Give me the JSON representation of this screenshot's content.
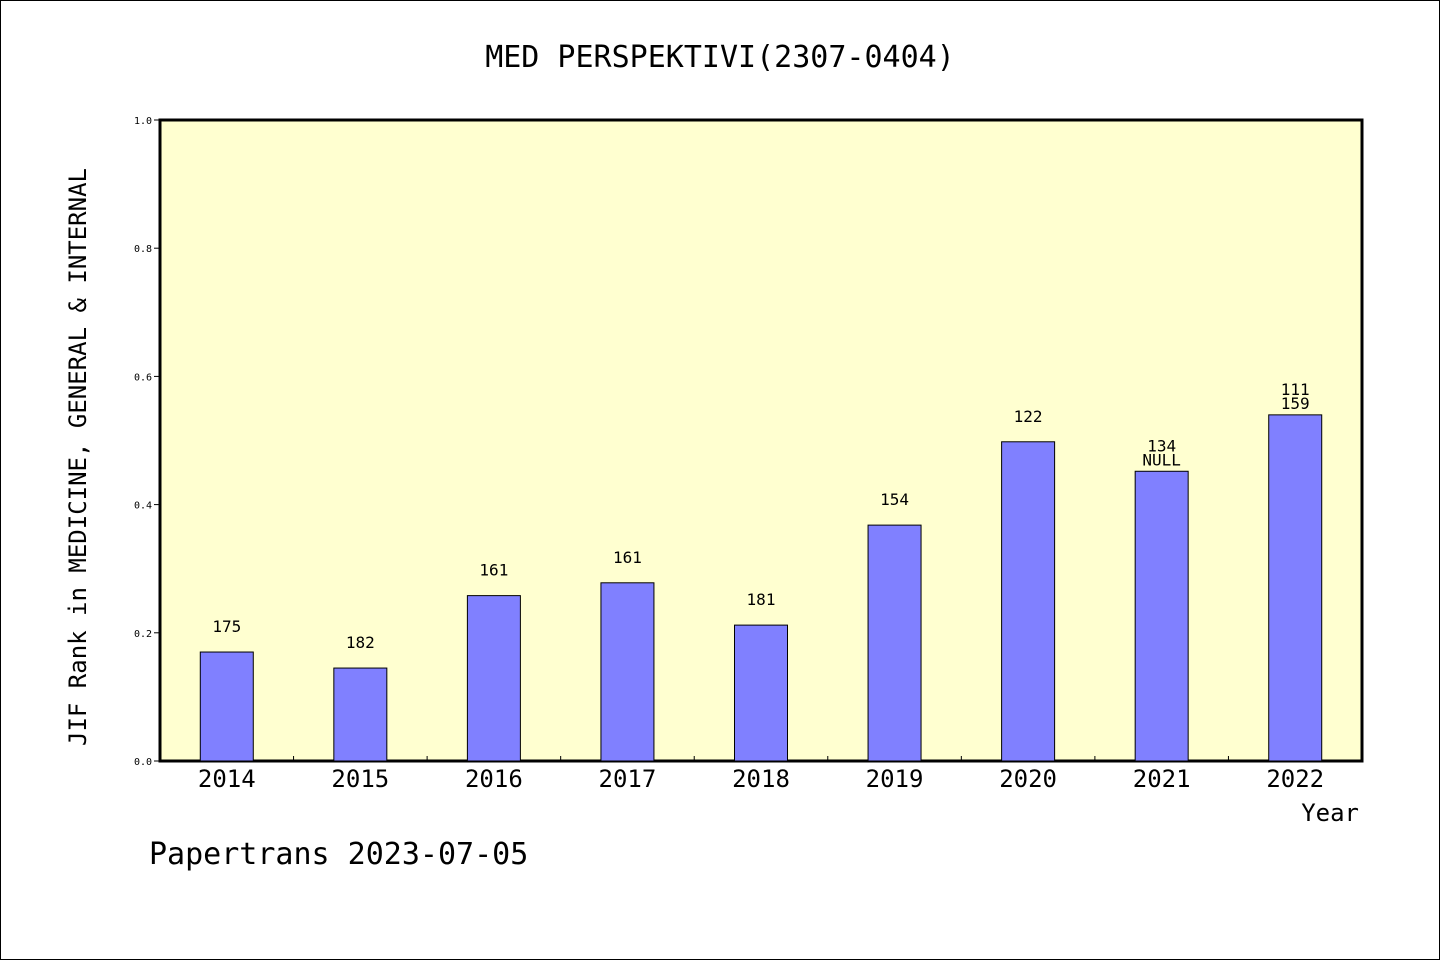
{
  "chart_data": {
    "type": "bar",
    "title": "MED PERSPEKTIVI(2307-0404)",
    "xlabel": "Year",
    "ylabel": "JIF Rank in MEDICINE, GENERAL & INTERNAL",
    "ylim": [
      0,
      1.0
    ],
    "yticks": [
      "0.0",
      "0.2",
      "0.4",
      "0.6",
      "0.8",
      "1.0"
    ],
    "categories": [
      "2014",
      "2015",
      "2016",
      "2017",
      "2018",
      "2019",
      "2020",
      "2021",
      "2022"
    ],
    "values": [
      0.17,
      0.145,
      0.258,
      0.278,
      0.212,
      0.368,
      0.498,
      0.452,
      0.54
    ],
    "data_labels": [
      [
        "175"
      ],
      [
        "182"
      ],
      [
        "161"
      ],
      [
        "161"
      ],
      [
        "181"
      ],
      [
        "154"
      ],
      [
        "122"
      ],
      [
        "134",
        "NULL"
      ],
      [
        "111",
        "159"
      ]
    ],
    "grid": false,
    "colors": {
      "plot_background": "#ffffd0",
      "bar_fill": "#8080ff",
      "bar_stroke": "#000000"
    }
  },
  "footer": "Papertrans 2023-07-05"
}
